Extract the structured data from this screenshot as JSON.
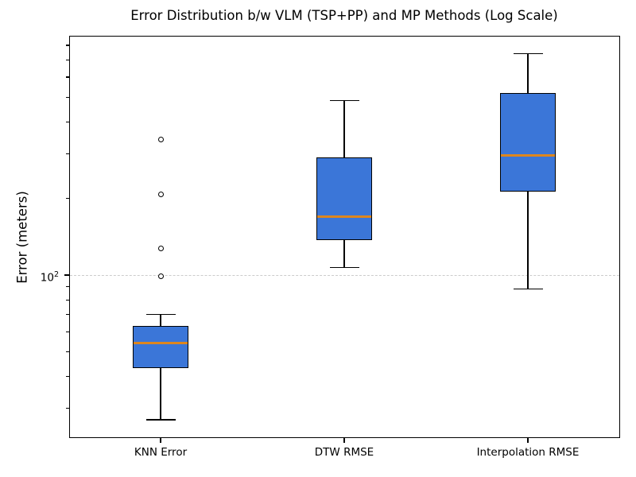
{
  "title": "Error Distribution b/w VLM (TSP+PP) and MP Methods (Log Scale)",
  "chart_data": {
    "type": "boxplot",
    "title": "Error Distribution b/w VLM (TSP+PP) and MP Methods (Log Scale)",
    "ylabel": "Error (meters)",
    "xlabel": "",
    "yscale": "log",
    "ylim": [
      22.9,
      872
    ],
    "grid": "horizontal dashed gridline at y=100 only",
    "legend": "none",
    "ytick_major": {
      "value": 100,
      "base": "10",
      "exponent": "2"
    },
    "ytick_minor_values": [
      30,
      40,
      50,
      60,
      70,
      80,
      90,
      200,
      300,
      400,
      500,
      600,
      700,
      800
    ],
    "categories": [
      "KNN Error",
      "DTW RMSE",
      "Interpolation RMSE"
    ],
    "series": [
      {
        "name": "KNN Error",
        "whisker_low": 27,
        "q1": 43,
        "median": 54,
        "q3": 63,
        "whisker_high": 70,
        "outliers": [
          99,
          127,
          207,
          340
        ]
      },
      {
        "name": "DTW RMSE",
        "whisker_low": 107,
        "q1": 137,
        "median": 170,
        "q3": 290,
        "whisker_high": 485,
        "outliers": []
      },
      {
        "name": "Interpolation RMSE",
        "whisker_low": 88,
        "q1": 213,
        "median": 295,
        "q3": 520,
        "whisker_high": 740,
        "outliers": []
      }
    ],
    "colors": {
      "box_fill": "#3B76D8",
      "box_edge": "#000000",
      "median": "#DD861E",
      "whisker": "#000000",
      "outlier_edge": "#000000",
      "grid": "#CCCCCC",
      "background": "#FFFFFF"
    }
  }
}
